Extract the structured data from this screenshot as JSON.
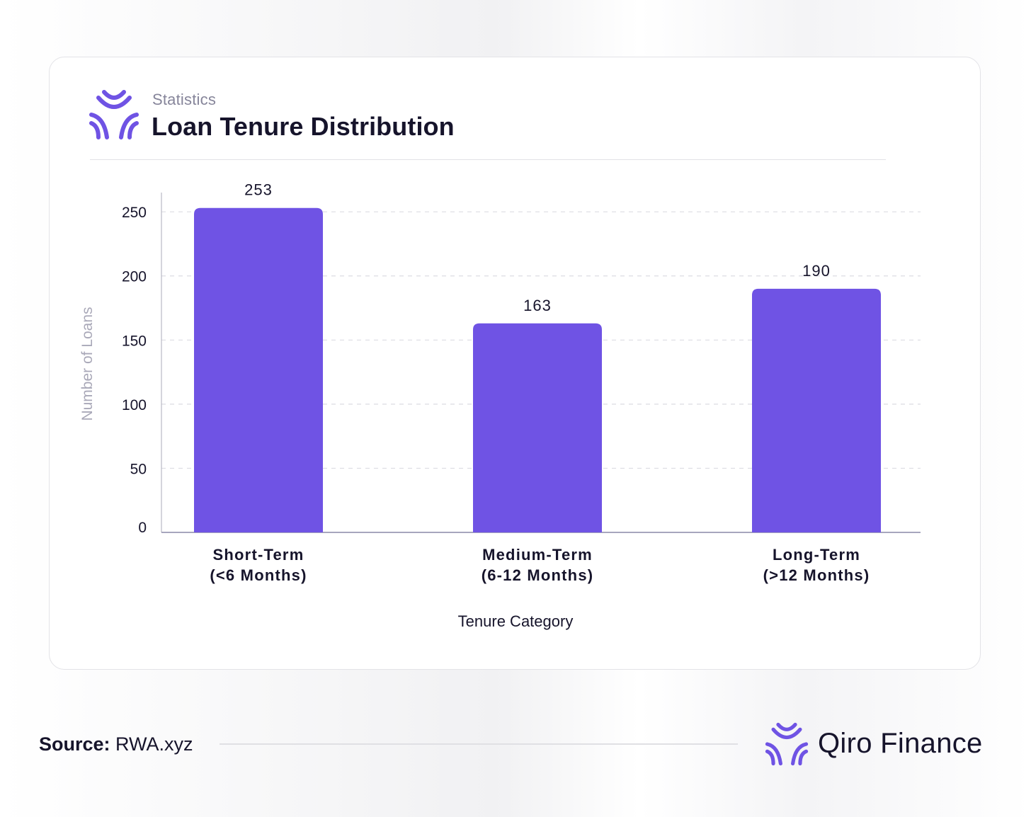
{
  "header": {
    "eyebrow": "Statistics",
    "title": "Loan Tenure Distribution"
  },
  "footer": {
    "source_label": "Source:",
    "source_value": "RWA.xyz",
    "brand_name": "Qiro Finance",
    "logo_icon": "qiro-logo-icon"
  },
  "colors": {
    "bar": "#6f53e4",
    "brand": "#6f53e4",
    "text_dark": "#16142b",
    "text_muted": "#86859a"
  },
  "chart_data": {
    "type": "bar",
    "categories": [
      [
        "Short-Term",
        "(<6 Months)"
      ],
      [
        "Medium-Term",
        "(6-12 Months)"
      ],
      [
        "Long-Term",
        "(>12 Months)"
      ]
    ],
    "values": [
      253,
      163,
      190
    ],
    "data_labels": [
      "253",
      "163",
      "190"
    ],
    "xlabel": "Tenure Category",
    "ylabel": "Number of Loans",
    "ylim": [
      0,
      265
    ],
    "yticks": [
      0,
      50,
      100,
      150,
      200,
      250
    ],
    "grid": "horizontal dashed",
    "legend": "none"
  }
}
